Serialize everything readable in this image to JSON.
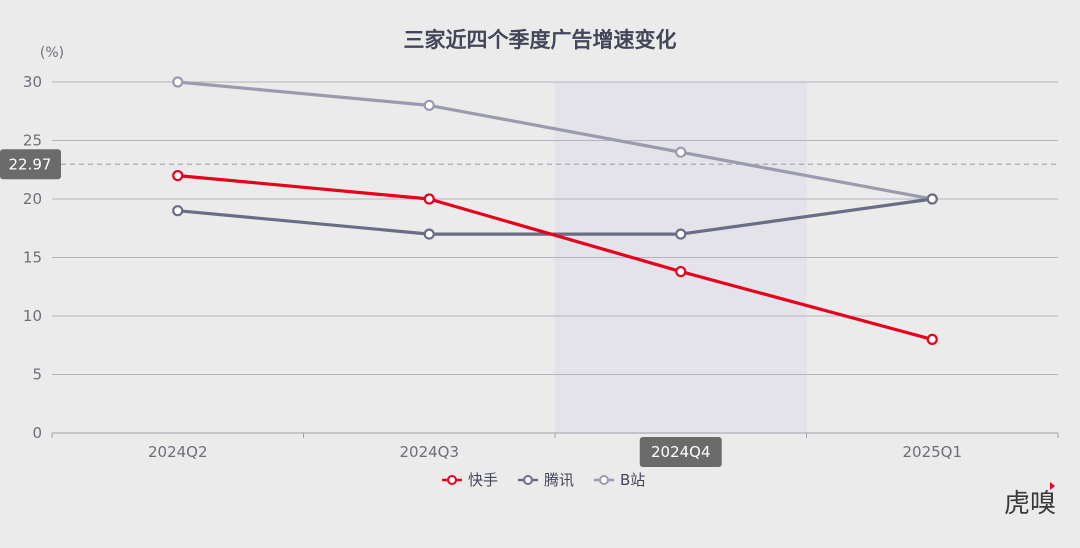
{
  "chart_data": {
    "type": "line",
    "title": "三家近四个季度广告增速变化",
    "ylabel": "(%)",
    "xlabel": "",
    "categories": [
      "2024Q2",
      "2024Q3",
      "2024Q4",
      "2025Q1"
    ],
    "ylim": [
      0,
      30
    ],
    "yticks": [
      0,
      5,
      10,
      15,
      20,
      25,
      30
    ],
    "series": [
      {
        "name": "快手",
        "color": "#e8001c",
        "values": [
          22,
          20,
          13.8,
          8
        ]
      },
      {
        "name": "腾讯",
        "color": "#6a6d85",
        "values": [
          19,
          17,
          17,
          20
        ]
      },
      {
        "name": "B站",
        "color": "#9a9cad",
        "values": [
          30,
          28,
          24,
          20
        ]
      }
    ],
    "tooltip": {
      "highlight_category": "2024Q4",
      "y_value": 22.97,
      "y_label": "22.97",
      "x_label": "2024Q4"
    },
    "grid": true,
    "legend_position": "bottom-center"
  },
  "watermark": "虎嗅"
}
